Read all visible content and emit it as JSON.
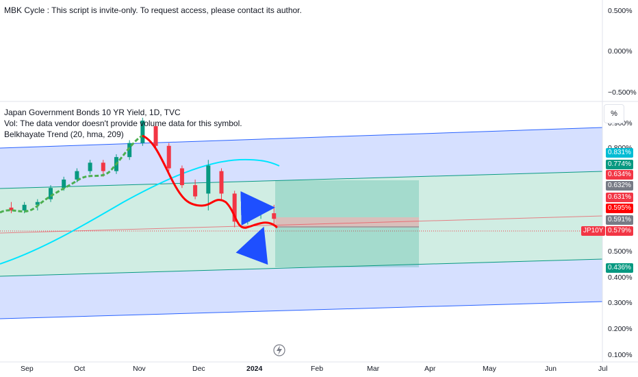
{
  "top_pane": {
    "legend_text": "MBK Cycle : This script is invite-only. To request access, please contact its author.",
    "axis_ticks": [
      "0.500%",
      "0.000%",
      "−0.500%"
    ]
  },
  "main_pane": {
    "title": "Japan Government Bonds 10 YR Yield, 1D, TVC",
    "vol_text": "Vol: The data vendor doesn't provide volume data for this symbol.",
    "indicator_text": "Belkhayate Trend (20, hma, 209)",
    "scale_button": "%",
    "axis_ticks": [
      "0.900%",
      "0.800%",
      "0.400%",
      "0.500%",
      "0.300%",
      "0.200%",
      "0.100%"
    ],
    "symbol_tag": "JP10Y",
    "price_badges": [
      {
        "text": "0.831%",
        "color": "#00bcd4"
      },
      {
        "text": "0.774%",
        "color": "#089981"
      },
      {
        "text": "0.634%",
        "color": "#f23645"
      },
      {
        "text": "0.632%",
        "color": "#787b86"
      },
      {
        "text": "0.631%",
        "color": "#f23645"
      },
      {
        "text": "0.595%",
        "color": "#ff0000"
      },
      {
        "text": "0.591%",
        "color": "#787b86"
      },
      {
        "text": "0.579%",
        "color": "#f23645"
      },
      {
        "text": "0.436%",
        "color": "#089981"
      }
    ]
  },
  "time_axis": {
    "labels": [
      "Sep",
      "Oct",
      "Nov",
      "Dec",
      "2024",
      "Feb",
      "Mar",
      "Apr",
      "May",
      "Jun",
      "Jul"
    ]
  },
  "colors": {
    "up": "#089981",
    "down": "#f23645",
    "channel_fill": "#c8d6ff",
    "inner_fill": "#cfeee0",
    "band_line": "#2962ff",
    "inner_line": "#089981",
    "ma_line": "#00e5ff",
    "trend_up": "#4caf50",
    "trend_down": "#ff0000",
    "arrow": "#1e4fff"
  },
  "chart_data": {
    "type": "candlestick",
    "title": "Japan Government Bonds 10 YR Yield, 1D, TVC",
    "y_unit": "%",
    "ylim": [
      0.1,
      0.93
    ],
    "x_range": [
      "2023-08-15",
      "2024-07-01"
    ],
    "ohlc": [
      {
        "d": "2023-08-21",
        "o": 0.63,
        "h": 0.65,
        "l": 0.61,
        "c": 0.62
      },
      {
        "d": "2023-08-28",
        "o": 0.62,
        "h": 0.65,
        "l": 0.61,
        "c": 0.64
      },
      {
        "d": "2023-09-04",
        "o": 0.64,
        "h": 0.66,
        "l": 0.62,
        "c": 0.65
      },
      {
        "d": "2023-09-11",
        "o": 0.66,
        "h": 0.71,
        "l": 0.65,
        "c": 0.7
      },
      {
        "d": "2023-09-18",
        "o": 0.7,
        "h": 0.74,
        "l": 0.69,
        "c": 0.73
      },
      {
        "d": "2023-09-25",
        "o": 0.73,
        "h": 0.77,
        "l": 0.72,
        "c": 0.76
      },
      {
        "d": "2023-10-02",
        "o": 0.76,
        "h": 0.8,
        "l": 0.75,
        "c": 0.79
      },
      {
        "d": "2023-10-09",
        "o": 0.79,
        "h": 0.8,
        "l": 0.74,
        "c": 0.76
      },
      {
        "d": "2023-10-16",
        "o": 0.76,
        "h": 0.82,
        "l": 0.75,
        "c": 0.81
      },
      {
        "d": "2023-10-23",
        "o": 0.81,
        "h": 0.87,
        "l": 0.8,
        "c": 0.86
      },
      {
        "d": "2023-10-30",
        "o": 0.86,
        "h": 0.95,
        "l": 0.85,
        "c": 0.94
      },
      {
        "d": "2023-11-06",
        "o": 0.92,
        "h": 0.93,
        "l": 0.84,
        "c": 0.85
      },
      {
        "d": "2023-11-13",
        "o": 0.85,
        "h": 0.86,
        "l": 0.76,
        "c": 0.77
      },
      {
        "d": "2023-11-20",
        "o": 0.77,
        "h": 0.78,
        "l": 0.7,
        "c": 0.71
      },
      {
        "d": "2023-11-27",
        "o": 0.71,
        "h": 0.73,
        "l": 0.66,
        "c": 0.67
      },
      {
        "d": "2023-12-04",
        "o": 0.68,
        "h": 0.8,
        "l": 0.62,
        "c": 0.78
      },
      {
        "d": "2023-12-11",
        "o": 0.76,
        "h": 0.77,
        "l": 0.66,
        "c": 0.68
      },
      {
        "d": "2023-12-18",
        "o": 0.68,
        "h": 0.69,
        "l": 0.56,
        "c": 0.58
      },
      {
        "d": "2023-12-25",
        "o": 0.58,
        "h": 0.63,
        "l": 0.57,
        "c": 0.61
      },
      {
        "d": "2024-01-01",
        "o": 0.61,
        "h": 0.63,
        "l": 0.59,
        "c": 0.61
      },
      {
        "d": "2024-01-08",
        "o": 0.61,
        "h": 0.64,
        "l": 0.57,
        "c": 0.59
      }
    ],
    "series": [
      {
        "name": "Belkhayate Trend (20, hma, 209)",
        "type": "line"
      }
    ],
    "annotations": [
      "Long position box",
      "Blue arrows"
    ]
  }
}
